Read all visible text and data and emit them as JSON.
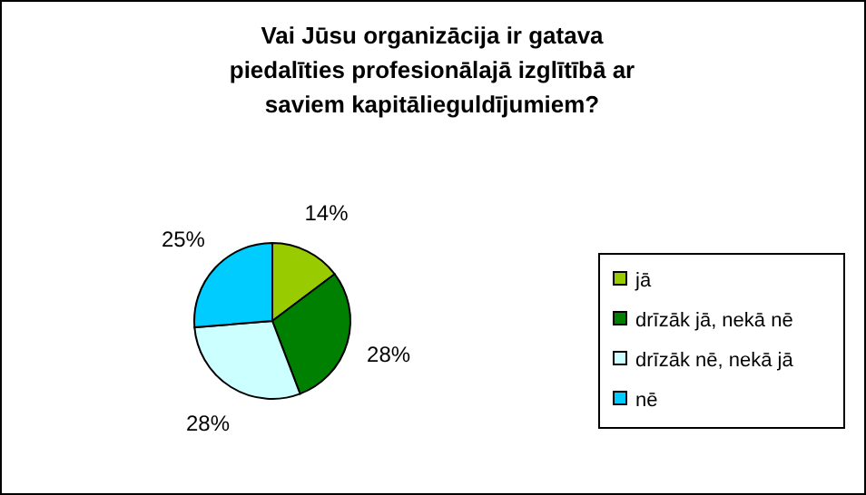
{
  "chart_data": {
    "type": "pie",
    "title": "Vai Jūsu organizācija ir gatava piedalīties profesionālajā izglītībā ar saviem kapitālieguldījumiem?",
    "categories": [
      "jā",
      "drīzāk jā, nekā nē",
      "drīzāk nē, nekā jā",
      "nē"
    ],
    "values": [
      14,
      28,
      28,
      25
    ],
    "colors": [
      "#99cc00",
      "#008000",
      "#ccffff",
      "#00ccff"
    ],
    "value_labels": [
      "14%",
      "28%",
      "28%",
      "25%"
    ],
    "legend": "right"
  }
}
